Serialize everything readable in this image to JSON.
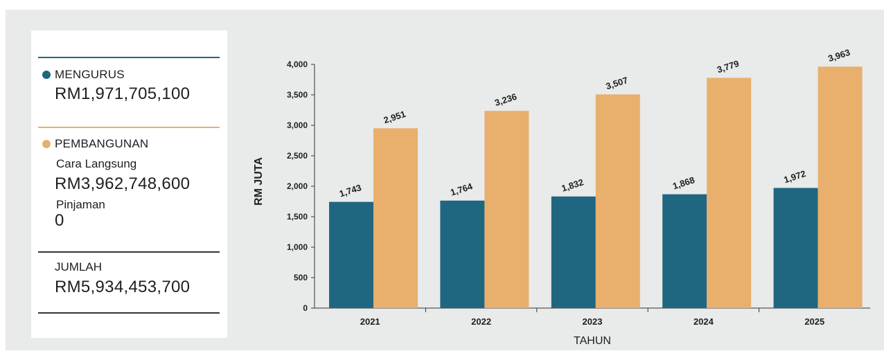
{
  "legend": {
    "mengurus": {
      "label": "MENGURUS",
      "amount": "RM1,971,705,100",
      "color": "#1f6680"
    },
    "pembangunan": {
      "label": "PEMBANGUNAN",
      "color": "#e8b06c",
      "cara_langsung_label": "Cara Langsung",
      "cara_langsung_amount": "RM3,962,748,600",
      "pinjaman_label": "Pinjaman",
      "pinjaman_amount": "0"
    },
    "jumlah": {
      "label": "JUMLAH",
      "amount": "RM5,934,453,700"
    }
  },
  "chart_data": {
    "type": "bar",
    "categories": [
      "2021",
      "2022",
      "2023",
      "2024",
      "2025"
    ],
    "series": [
      {
        "name": "MENGURUS",
        "color": "#1f6680",
        "values": [
          1743,
          1764,
          1832,
          1868,
          1972
        ],
        "labels": [
          "1,743",
          "1,764",
          "1,832",
          "1,868",
          "1,972"
        ]
      },
      {
        "name": "PEMBANGUNAN",
        "color": "#e8b06c",
        "values": [
          2951,
          3236,
          3507,
          3779,
          3963
        ],
        "labels": [
          "2,951",
          "3,236",
          "3,507",
          "3,779",
          "3,963"
        ]
      }
    ],
    "xlabel": "TAHUN",
    "ylabel": "RM JUTA",
    "ylim": [
      0,
      4000
    ],
    "yticks": [
      0,
      500,
      1000,
      1500,
      2000,
      2500,
      3000,
      3500,
      4000
    ],
    "ytick_labels": [
      "0",
      "500",
      "1,000",
      "1,500",
      "2,000",
      "2,500",
      "3,000",
      "3,500",
      "4,000"
    ],
    "grid": false,
    "legend_placement": "left panel"
  }
}
